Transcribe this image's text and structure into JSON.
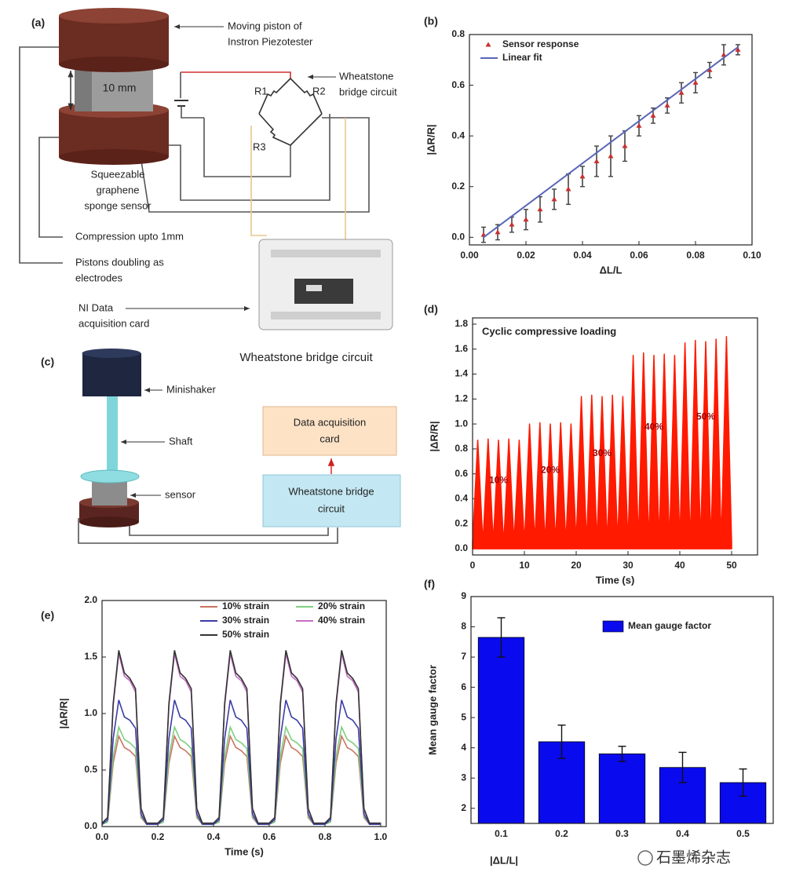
{
  "figure_a": {
    "panel_label": "(a)",
    "piston_label": [
      "Moving piston of",
      "Instron Piezotester"
    ],
    "block_label": "10 mm",
    "bridge_label": [
      "Wheatstone",
      "bridge circuit"
    ],
    "resistors": [
      "R1",
      "R2",
      "R3"
    ],
    "sensor_label": [
      "Squeezable",
      "graphene",
      "sponge sensor"
    ],
    "compression_label": "Compression upto 1mm",
    "electrode_label": [
      "Pistons doubling as",
      "electrodes"
    ],
    "daq_label": [
      "NI Data",
      "acquisition card"
    ],
    "caption": "Wheatstone bridge circuit"
  },
  "figure_c": {
    "panel_label": "(c)",
    "shaker_label": "Minishaker",
    "shaft_label": "Shaft",
    "sensor_label": "sensor",
    "daq_box": [
      "Data acquisition",
      "card"
    ],
    "bridge_box": [
      "Wheatstone bridge",
      "circuit"
    ]
  },
  "watermark": "石墨烯杂志",
  "chart_data": [
    {
      "type": "scatter",
      "panel_label": "(b)",
      "x_label": "ΔL/L",
      "y_label": "|ΔR/R|",
      "xlim": [
        0,
        0.1
      ],
      "ylim": [
        -0.03,
        0.8
      ],
      "xticks": [
        {
          "value": 0,
          "label": "0.00"
        },
        0.02,
        0.04,
        0.06,
        0.08,
        {
          "value": 0.1,
          "label": "0.10"
        }
      ],
      "yticks": [
        {
          "value": 0,
          "label": "0.0"
        },
        0.2,
        0.4,
        0.6,
        0.8
      ],
      "legend": "top-left",
      "series": [
        {
          "name": "Sensor response",
          "color": "#c83030",
          "error_color": "#444444",
          "x": [
            0.005,
            0.01,
            0.015,
            0.02,
            0.025,
            0.03,
            0.035,
            0.04,
            0.045,
            0.05,
            0.055,
            0.06,
            0.065,
            0.07,
            0.075,
            0.08,
            0.085,
            0.09,
            0.095
          ],
          "values": [
            0.01,
            0.02,
            0.05,
            0.07,
            0.11,
            0.15,
            0.19,
            0.24,
            0.3,
            0.32,
            0.36,
            0.44,
            0.48,
            0.52,
            0.57,
            0.61,
            0.66,
            0.72,
            0.74
          ],
          "errors": [
            0.03,
            0.03,
            0.03,
            0.04,
            0.05,
            0.04,
            0.06,
            0.04,
            0.06,
            0.08,
            0.06,
            0.04,
            0.03,
            0.03,
            0.04,
            0.04,
            0.03,
            0.04,
            0.02
          ]
        },
        {
          "name": "Linear fit",
          "color": "#5866b8",
          "style": "line",
          "x": [
            0.005,
            0.095
          ],
          "values": [
            0,
            0.75
          ]
        }
      ]
    },
    {
      "type": "area",
      "panel_label": "(d)",
      "title": "Cyclic compressive loading",
      "x_label": "Time (s)",
      "y_label": "|ΔR/R|",
      "xlim": [
        0,
        55
      ],
      "ylim": [
        -0.05,
        1.85
      ],
      "xticks": [
        0,
        10,
        20,
        30,
        40,
        50
      ],
      "yticks": [
        {
          "value": 0,
          "label": "0.0"
        },
        0.2,
        0.4,
        0.6,
        0.8,
        {
          "value": 1,
          "label": "1.0"
        },
        1.2,
        1.4,
        1.6,
        1.8
      ],
      "color": "#ff1a00",
      "step_labels": [
        "10%",
        "20%",
        "30%",
        "40%",
        "50%"
      ],
      "x": [
        0,
        1,
        2,
        3,
        4,
        5,
        6,
        7,
        8,
        9,
        10,
        11,
        12,
        13,
        14,
        15,
        16,
        17,
        18,
        19,
        20,
        21,
        22,
        23,
        24,
        25,
        26,
        27,
        28,
        29,
        30,
        31,
        32,
        33,
        34,
        35,
        36,
        37,
        38,
        39,
        40,
        41,
        42,
        43,
        44,
        45,
        46,
        47,
        48,
        49,
        50
      ],
      "values": [
        0.05,
        0.87,
        0.04,
        0.88,
        0.05,
        0.87,
        0.03,
        0.88,
        0.05,
        0.87,
        0.04,
        1.0,
        0.05,
        1.01,
        0.04,
        1.0,
        0.05,
        1.01,
        0.04,
        1.0,
        0.05,
        1.22,
        0.04,
        1.23,
        0.05,
        1.22,
        0.04,
        1.23,
        0.05,
        1.22,
        0.04,
        1.55,
        0.05,
        1.57,
        0.04,
        1.55,
        0.05,
        1.56,
        0.04,
        1.55,
        0.05,
        1.65,
        0.04,
        1.67,
        0.05,
        1.66,
        0.04,
        1.68,
        0.05,
        1.7,
        0.05
      ]
    },
    {
      "type": "line",
      "panel_label": "(e)",
      "x_label": "Time (s)",
      "y_label": "|ΔR/R|",
      "xlim": [
        0,
        1.02
      ],
      "ylim": [
        0,
        2
      ],
      "xticks": [
        {
          "value": 0,
          "label": "0.0"
        },
        0.2,
        0.4,
        0.6,
        0.8,
        {
          "value": 1,
          "label": "1.0"
        }
      ],
      "yticks": [
        {
          "value": 0,
          "label": "0.0"
        },
        0.5,
        {
          "value": 1,
          "label": "1.0"
        },
        1.5,
        {
          "value": 2,
          "label": "2.0"
        }
      ],
      "legend": "top-right",
      "x": [
        0,
        0.02,
        0.04,
        0.06,
        0.08,
        0.1,
        0.12,
        0.14,
        0.16,
        0.18,
        0.2,
        0.22,
        0.24,
        0.26,
        0.28,
        0.3,
        0.32,
        0.34,
        0.36,
        0.38,
        0.4,
        0.42,
        0.44,
        0.46,
        0.48,
        0.5,
        0.52,
        0.54,
        0.56,
        0.58,
        0.6,
        0.62,
        0.64,
        0.66,
        0.68,
        0.7,
        0.72,
        0.74,
        0.76,
        0.78,
        0.8,
        0.82,
        0.84,
        0.86,
        0.88,
        0.9,
        0.92,
        0.94,
        0.96,
        0.98,
        1.0
      ],
      "series": [
        {
          "name": "10% strain",
          "color": "#c8735f",
          "values": [
            0.02,
            0.04,
            0.56,
            0.8,
            0.7,
            0.67,
            0.62,
            0.08,
            0.02,
            0.02,
            0.02,
            0.04,
            0.56,
            0.8,
            0.7,
            0.67,
            0.62,
            0.08,
            0.02,
            0.02,
            0.02,
            0.04,
            0.56,
            0.8,
            0.7,
            0.67,
            0.62,
            0.08,
            0.02,
            0.02,
            0.02,
            0.04,
            0.56,
            0.8,
            0.7,
            0.67,
            0.62,
            0.08,
            0.02,
            0.02,
            0.02,
            0.04,
            0.56,
            0.8,
            0.7,
            0.67,
            0.62,
            0.08,
            0.02,
            0.02,
            0.02
          ]
        },
        {
          "name": "20% strain",
          "color": "#7fcf7f",
          "values": [
            0.02,
            0.04,
            0.62,
            0.88,
            0.77,
            0.74,
            0.69,
            0.09,
            0.02,
            0.02,
            0.02,
            0.04,
            0.62,
            0.88,
            0.77,
            0.74,
            0.69,
            0.09,
            0.02,
            0.02,
            0.02,
            0.04,
            0.62,
            0.88,
            0.77,
            0.74,
            0.69,
            0.09,
            0.02,
            0.02,
            0.02,
            0.04,
            0.62,
            0.88,
            0.77,
            0.74,
            0.69,
            0.09,
            0.02,
            0.02,
            0.02,
            0.04,
            0.62,
            0.88,
            0.77,
            0.74,
            0.69,
            0.09,
            0.02,
            0.02,
            0.02
          ]
        },
        {
          "name": "30% strain",
          "color": "#3c3ca6",
          "values": [
            0.02,
            0.06,
            0.78,
            1.12,
            0.97,
            0.94,
            0.87,
            0.11,
            0.02,
            0.02,
            0.02,
            0.06,
            0.78,
            1.12,
            0.97,
            0.94,
            0.87,
            0.11,
            0.02,
            0.02,
            0.02,
            0.06,
            0.78,
            1.12,
            0.97,
            0.94,
            0.87,
            0.11,
            0.02,
            0.02,
            0.02,
            0.06,
            0.78,
            1.12,
            0.97,
            0.94,
            0.87,
            0.11,
            0.02,
            0.02,
            0.02,
            0.06,
            0.78,
            1.12,
            0.97,
            0.94,
            0.87,
            0.11,
            0.02,
            0.02,
            0.02
          ]
        },
        {
          "name": "40% strain",
          "color": "#c46fc4",
          "values": [
            0.03,
            0.08,
            1.07,
            1.53,
            1.33,
            1.29,
            1.19,
            0.15,
            0.03,
            0.03,
            0.03,
            0.08,
            1.07,
            1.53,
            1.33,
            1.29,
            1.19,
            0.15,
            0.03,
            0.03,
            0.03,
            0.08,
            1.07,
            1.53,
            1.33,
            1.29,
            1.19,
            0.15,
            0.03,
            0.03,
            0.03,
            0.08,
            1.07,
            1.53,
            1.33,
            1.29,
            1.19,
            0.15,
            0.03,
            0.03,
            0.03,
            0.08,
            1.07,
            1.53,
            1.33,
            1.29,
            1.19,
            0.15,
            0.03,
            0.03,
            0.03
          ]
        },
        {
          "name": "50% strain",
          "color": "#333333",
          "values": [
            0.03,
            0.08,
            1.09,
            1.56,
            1.36,
            1.31,
            1.22,
            0.16,
            0.03,
            0.03,
            0.03,
            0.08,
            1.09,
            1.56,
            1.36,
            1.31,
            1.22,
            0.16,
            0.03,
            0.03,
            0.03,
            0.08,
            1.09,
            1.56,
            1.36,
            1.31,
            1.22,
            0.16,
            0.03,
            0.03,
            0.03,
            0.08,
            1.09,
            1.56,
            1.36,
            1.31,
            1.22,
            0.16,
            0.03,
            0.03,
            0.03,
            0.08,
            1.09,
            1.56,
            1.36,
            1.31,
            1.22,
            0.16,
            0.03,
            0.03,
            0.03
          ]
        }
      ]
    },
    {
      "type": "bar",
      "panel_label": "(f)",
      "x_label": "|ΔL/L|",
      "y_label": "Mean gauge factor",
      "ylim": [
        1.5,
        9
      ],
      "yticks": [
        2,
        3,
        4,
        5,
        6,
        7,
        8,
        9
      ],
      "categories": [
        "0.1",
        "0.2",
        "0.3",
        "0.4",
        "0.5"
      ],
      "legend": "top-right",
      "series": [
        {
          "name": "Mean gauge factor",
          "color": "#0a0aee",
          "values": [
            7.65,
            4.2,
            3.8,
            3.35,
            2.85
          ],
          "errors": [
            0.65,
            0.55,
            0.25,
            0.5,
            0.45
          ]
        }
      ]
    }
  ]
}
